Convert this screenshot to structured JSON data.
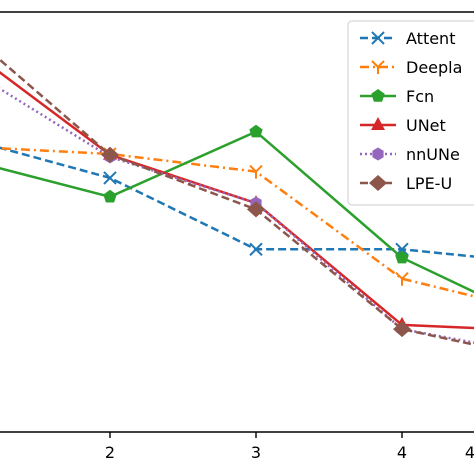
{
  "chart_data": {
    "type": "line",
    "title": "",
    "xlabel": "",
    "ylabel": "",
    "x_visible_ticks": [
      "2",
      "3",
      "4"
    ],
    "x": [
      1,
      2,
      3,
      4,
      5
    ],
    "xlim": [
      1.0,
      5.5
    ],
    "ylim": [
      0.0,
      1.0
    ],
    "grid": false,
    "legend_position": "top-right",
    "series": [
      {
        "name": "Attent",
        "color": "#1f77b4",
        "dash": "dashed",
        "marker": "x",
        "values": [
          0.7,
          0.605,
          0.435,
          0.435,
          0.4
        ]
      },
      {
        "name": "Deepla",
        "color": "#ff7f0e",
        "dash": "dashdot",
        "marker": "tri",
        "values": [
          0.68,
          0.662,
          0.62,
          0.365,
          0.28
        ]
      },
      {
        "name": "Fcn",
        "color": "#2ca02c",
        "dash": "solid",
        "marker": "pentagon",
        "values": [
          0.65,
          0.56,
          0.715,
          0.415,
          0.25
        ]
      },
      {
        "name": "UNet",
        "color": "#d62728",
        "dash": "solid",
        "marker": "triangle",
        "values": [
          0.92,
          0.66,
          0.545,
          0.255,
          0.24
        ]
      },
      {
        "name": "nnUNe",
        "color": "#9467bd",
        "dash": "dotted",
        "marker": "hexagon",
        "values": [
          0.87,
          0.655,
          0.545,
          0.245,
          0.18
        ]
      },
      {
        "name": "LPE-U",
        "color": "#8c564b",
        "dash": "dashed",
        "marker": "diamond",
        "values": [
          0.96,
          0.66,
          0.53,
          0.245,
          0.17
        ]
      }
    ]
  }
}
